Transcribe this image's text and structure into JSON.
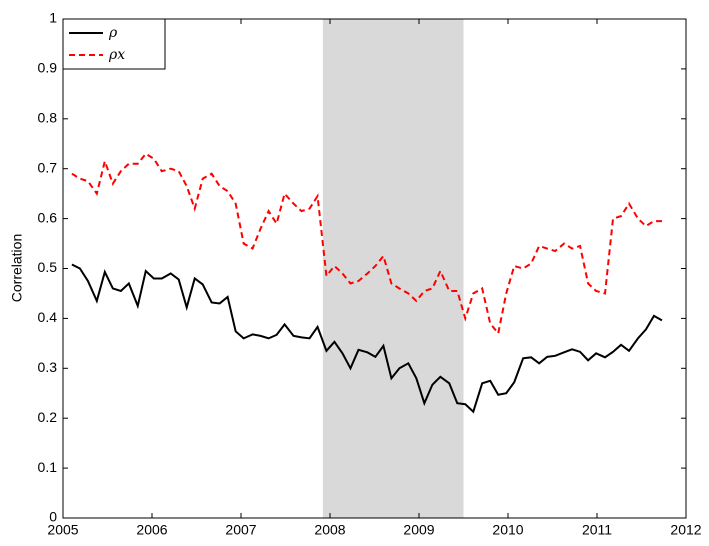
{
  "chart_data": {
    "type": "line",
    "ylabel": "Correlation",
    "x": [
      2005.1,
      2005.19,
      2005.28,
      2005.38,
      2005.47,
      2005.56,
      2005.65,
      2005.74,
      2005.84,
      2005.93,
      2006.02,
      2006.11,
      2006.21,
      2006.3,
      2006.39,
      2006.48,
      2006.57,
      2006.67,
      2006.76,
      2006.85,
      2006.94,
      2007.03,
      2007.13,
      2007.22,
      2007.31,
      2007.4,
      2007.49,
      2007.59,
      2007.68,
      2007.77,
      2007.86,
      2007.96,
      2008.05,
      2008.14,
      2008.23,
      2008.32,
      2008.42,
      2008.51,
      2008.6,
      2008.69,
      2008.78,
      2008.88,
      2008.97,
      2009.06,
      2009.15,
      2009.24,
      2009.34,
      2009.43,
      2009.52,
      2009.61,
      2009.71,
      2009.8,
      2009.89,
      2009.98,
      2010.07,
      2010.17,
      2010.26,
      2010.35,
      2010.44,
      2010.53,
      2010.63,
      2010.72,
      2010.81,
      2010.9,
      2010.99,
      2011.09,
      2011.18,
      2011.27,
      2011.36,
      2011.46,
      2011.55,
      2011.64,
      2011.73
    ],
    "series": [
      {
        "name": "ρ",
        "color": "#000000",
        "dash": "solid",
        "values": [
          0.508,
          0.5,
          0.475,
          0.435,
          0.493,
          0.46,
          0.455,
          0.47,
          0.425,
          0.495,
          0.48,
          0.48,
          0.49,
          0.478,
          0.422,
          0.48,
          0.468,
          0.432,
          0.43,
          0.443,
          0.374,
          0.36,
          0.368,
          0.365,
          0.36,
          0.367,
          0.388,
          0.365,
          0.362,
          0.36,
          0.383,
          0.335,
          0.353,
          0.33,
          0.3,
          0.337,
          0.332,
          0.323,
          0.345,
          0.28,
          0.3,
          0.31,
          0.28,
          0.23,
          0.267,
          0.283,
          0.27,
          0.23,
          0.228,
          0.213,
          0.27,
          0.275,
          0.247,
          0.25,
          0.272,
          0.32,
          0.322,
          0.31,
          0.323,
          0.325,
          0.332,
          0.338,
          0.333,
          0.316,
          0.33,
          0.322,
          0.333,
          0.347,
          0.335,
          0.36,
          0.378,
          0.405,
          0.396
        ]
      },
      {
        "name": "ρx",
        "color": "#ff0000",
        "dash": "dashed",
        "values": [
          0.69,
          0.68,
          0.675,
          0.65,
          0.715,
          0.67,
          0.695,
          0.71,
          0.71,
          0.73,
          0.72,
          0.695,
          0.7,
          0.695,
          0.665,
          0.62,
          0.68,
          0.69,
          0.665,
          0.655,
          0.63,
          0.55,
          0.54,
          0.58,
          0.615,
          0.59,
          0.65,
          0.63,
          0.615,
          0.62,
          0.645,
          0.485,
          0.505,
          0.49,
          0.47,
          0.475,
          0.49,
          0.505,
          0.525,
          0.47,
          0.46,
          0.45,
          0.435,
          0.455,
          0.46,
          0.495,
          0.455,
          0.455,
          0.4,
          0.45,
          0.46,
          0.39,
          0.37,
          0.45,
          0.505,
          0.5,
          0.51,
          0.545,
          0.54,
          0.535,
          0.55,
          0.54,
          0.545,
          0.47,
          0.455,
          0.45,
          0.6,
          0.605,
          0.63,
          0.6,
          0.585,
          0.595,
          0.595
        ]
      }
    ],
    "shaded_region": [
      2007.92,
      2009.5
    ],
    "shade_color": "#d9d9d9",
    "xlim": [
      2005,
      2012
    ],
    "xticks": [
      2005,
      2006,
      2007,
      2008,
      2009,
      2010,
      2011,
      2012
    ],
    "ylim": [
      0,
      1
    ],
    "yticks": [
      0,
      0.1,
      0.2,
      0.3,
      0.4,
      0.5,
      0.6,
      0.7,
      0.8,
      0.9,
      1
    ],
    "legend": "upper-left"
  }
}
